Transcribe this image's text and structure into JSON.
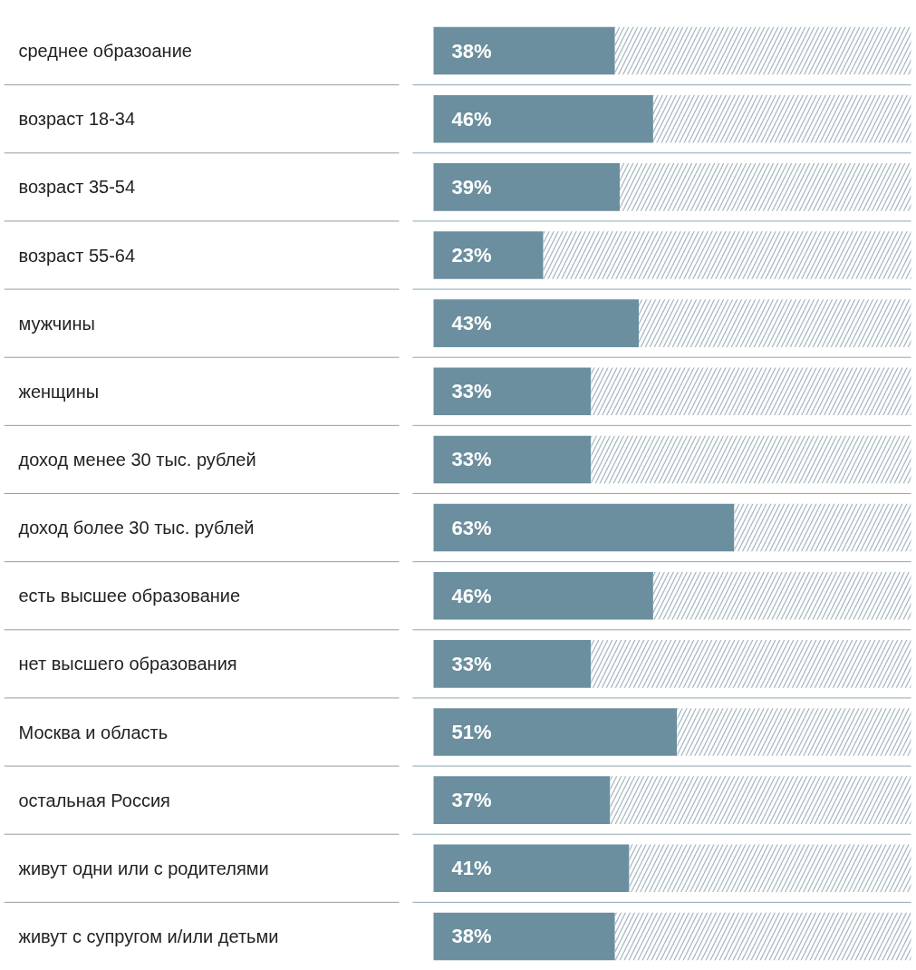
{
  "chart_data": {
    "type": "bar",
    "orientation": "horizontal",
    "stacked": true,
    "grid": "y",
    "categories": [
      "среднее образоание",
      "возраст 18-34",
      "возраст 35-54",
      "возраст 55-64",
      "мужчины",
      "женщины",
      "доход менее 30 тыс. рублей",
      "доход более 30 тыс. рублей",
      "есть высшее образование",
      "нет высшего образования",
      "Москва и область",
      "остальная Россия",
      "живут одни или с родителями",
      "живут с супругом и/или детьми"
    ],
    "series": [
      {
        "color": "#6b8f9e",
        "values": [
          38,
          46,
          39,
          23,
          43,
          33,
          33,
          63,
          46,
          33,
          51,
          37,
          41,
          38
        ],
        "value_labels": [
          "38%",
          "46%",
          "39%",
          "23%",
          "43%",
          "33%",
          "33%",
          "63%",
          "46%",
          "33%",
          "51%",
          "37%",
          "41%",
          "38%"
        ]
      },
      {
        "color": "#a9b9c2",
        "values": [
          62,
          54,
          61,
          77,
          57,
          67,
          67,
          37,
          54,
          67,
          49,
          63,
          59,
          62
        ]
      }
    ]
  }
}
